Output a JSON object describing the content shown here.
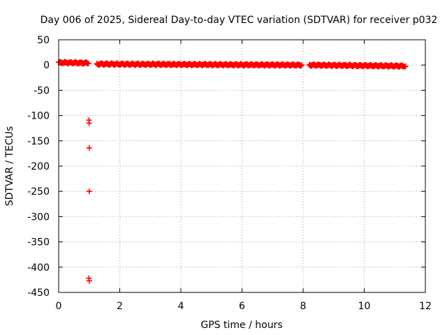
{
  "chart_data": {
    "type": "scatter",
    "title": "Day 006 of 2025, Sidereal Day-to-day VTEC variation (SDTVAR) for receiver p032",
    "xlabel": "GPS time / hours",
    "ylabel": "SDTVAR / TECUs",
    "xlim": [
      0,
      12
    ],
    "ylim": [
      -450,
      50
    ],
    "xticks": [
      0,
      2,
      4,
      6,
      8,
      10,
      12
    ],
    "yticks": [
      50,
      0,
      -50,
      -100,
      -150,
      -200,
      -250,
      -300,
      -350,
      -400,
      -450
    ],
    "grid": true,
    "marker": "+",
    "color": "#ff0000",
    "series": [
      {
        "name": "SDTVAR",
        "segments": [
          {
            "x_start": 0.0,
            "x_end": 0.98,
            "y_start": 5,
            "y_end": 4
          },
          {
            "x_start": 1.25,
            "x_end": 7.95,
            "y_start": 2,
            "y_end": 0
          },
          {
            "x_start": 8.2,
            "x_end": 11.35,
            "y_start": 0,
            "y_end": -2
          }
        ],
        "outliers": [
          {
            "x": 0.99,
            "y": -109
          },
          {
            "x": 1.0,
            "y": -115
          },
          {
            "x": 1.0,
            "y": -164
          },
          {
            "x": 1.0,
            "y": -250
          },
          {
            "x": 0.99,
            "y": -422
          },
          {
            "x": 1.0,
            "y": -427
          }
        ]
      }
    ]
  }
}
